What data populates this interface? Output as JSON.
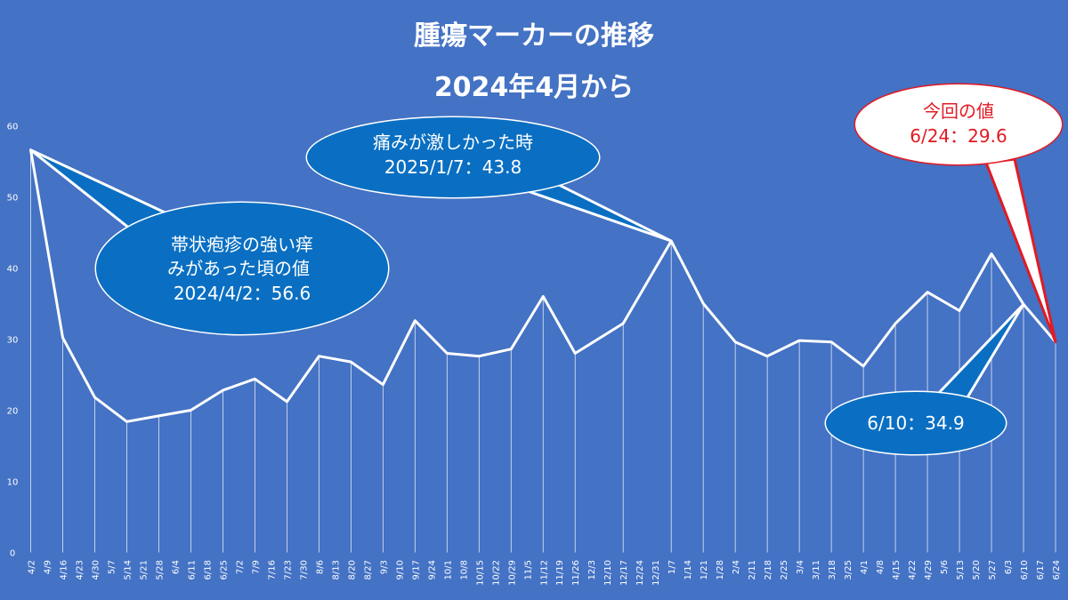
{
  "colors": {
    "background": "#4472c4",
    "line": "#ffffff",
    "callout_fill": "#0a6fc2",
    "callout_stroke": "#ffffff",
    "alert_fill": "#ffffff",
    "alert_stroke": "#e01b24",
    "alert_text": "#e01b24",
    "axis_text": "#ffffff"
  },
  "chart_data": {
    "type": "line",
    "title": "腫瘍マーカーの推移",
    "subtitle": "2024年4月から",
    "ylim": [
      0,
      60
    ],
    "yticks": [
      0,
      10,
      20,
      30,
      40,
      50,
      60
    ],
    "grid": false,
    "drop_lines": true,
    "categories": [
      "4/2",
      "4/9",
      "4/16",
      "4/23",
      "4/30",
      "5/7",
      "5/14",
      "5/21",
      "5/28",
      "6/4",
      "6/11",
      "6/18",
      "6/25",
      "7/2",
      "7/9",
      "7/16",
      "7/23",
      "7/30",
      "8/6",
      "8/13",
      "8/20",
      "8/27",
      "9/3",
      "9/10",
      "9/17",
      "9/24",
      "10/1",
      "10/8",
      "10/15",
      "10/22",
      "10/29",
      "11/5",
      "11/12",
      "11/19",
      "11/26",
      "12/3",
      "12/10",
      "12/17",
      "12/24",
      "12/31",
      "1/7",
      "1/14",
      "1/21",
      "1/28",
      "2/4",
      "2/11",
      "2/18",
      "2/25",
      "3/4",
      "3/11",
      "3/18",
      "3/25",
      "4/1",
      "4/8",
      "4/15",
      "4/22",
      "4/29",
      "5/6",
      "5/13",
      "5/20",
      "5/27",
      "6/3",
      "6/10",
      "6/17",
      "6/24"
    ],
    "points": [
      {
        "x": "4/2",
        "y": 56.6
      },
      {
        "x": "4/16",
        "y": 30.2
      },
      {
        "x": "4/30",
        "y": 21.8
      },
      {
        "x": "5/14",
        "y": 18.4
      },
      {
        "x": "5/28",
        "y": 19.2
      },
      {
        "x": "6/11",
        "y": 20.0
      },
      {
        "x": "6/25",
        "y": 22.8
      },
      {
        "x": "7/9",
        "y": 24.4
      },
      {
        "x": "7/23",
        "y": 21.2
      },
      {
        "x": "8/6",
        "y": 27.6
      },
      {
        "x": "8/20",
        "y": 26.8
      },
      {
        "x": "9/3",
        "y": 23.6
      },
      {
        "x": "9/17",
        "y": 32.6
      },
      {
        "x": "10/1",
        "y": 28.0
      },
      {
        "x": "10/15",
        "y": 27.6
      },
      {
        "x": "10/29",
        "y": 28.6
      },
      {
        "x": "11/12",
        "y": 36.0
      },
      {
        "x": "11/26",
        "y": 28.0
      },
      {
        "x": "12/17",
        "y": 32.2
      },
      {
        "x": "1/7",
        "y": 43.8
      },
      {
        "x": "1/21",
        "y": 35.0
      },
      {
        "x": "2/4",
        "y": 29.6
      },
      {
        "x": "2/18",
        "y": 27.6
      },
      {
        "x": "3/4",
        "y": 29.8
      },
      {
        "x": "3/18",
        "y": 29.6
      },
      {
        "x": "4/1",
        "y": 26.2
      },
      {
        "x": "4/15",
        "y": 32.2
      },
      {
        "x": "4/29",
        "y": 36.6
      },
      {
        "x": "5/13",
        "y": 34.0
      },
      {
        "x": "5/27",
        "y": 42.0
      },
      {
        "x": "6/10",
        "y": 34.9
      },
      {
        "x": "6/24",
        "y": 29.6
      }
    ],
    "annotations": [
      {
        "target": "4/2",
        "lines": [
          "帯状疱疹の強い痒",
          "みがあった頃の値",
          "2024/4/2：56.6"
        ]
      },
      {
        "target": "1/7",
        "lines": [
          "痛みが激しかった時",
          "2025/1/7：43.8"
        ]
      },
      {
        "target": "6/10",
        "lines": [
          "6/10：34.9"
        ]
      },
      {
        "target": "6/24",
        "lines": [
          "今回の値",
          "6/24：29.6"
        ]
      }
    ]
  }
}
